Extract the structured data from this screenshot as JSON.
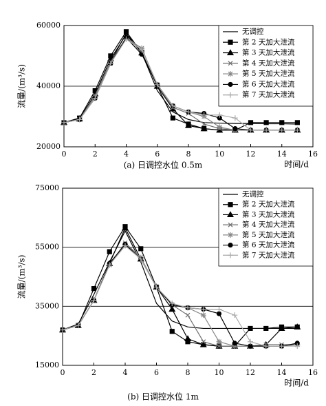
{
  "chart_data": [
    {
      "type": "line",
      "caption": "(a) 日调控水位 0.5m",
      "x_label": "时间/d",
      "y_label": "流量/(m³/s)",
      "x": [
        0,
        1,
        2,
        3,
        4,
        5,
        6,
        7,
        8,
        9,
        10,
        11,
        12,
        13,
        14,
        15
      ],
      "xlim": [
        0,
        16
      ],
      "xticks": [
        0,
        2,
        4,
        6,
        8,
        10,
        12,
        14,
        16
      ],
      "ylim": [
        20000,
        60000
      ],
      "yticks": [
        20000,
        40000,
        60000
      ],
      "grid": true,
      "legend": "upper right",
      "series": [
        {
          "name": "无调控",
          "color": "#000000",
          "marker": "none",
          "values": [
            28000,
            29500,
            37000,
            48000,
            57500,
            51000,
            38500,
            31500,
            29000,
            28000,
            27800,
            27700,
            27700,
            27600,
            27600,
            27500
          ]
        },
        {
          "name": "第 2 天加大泄流",
          "color": "#000000",
          "marker": "square",
          "values": [
            28000,
            29500,
            38500,
            50000,
            58000,
            51000,
            40000,
            29500,
            27500,
            26000,
            25500,
            25500,
            28000,
            28000,
            28000,
            28000
          ]
        },
        {
          "name": "第 3 天加大泄流",
          "color": "#000000",
          "marker": "triangle",
          "values": [
            28000,
            29200,
            37500,
            49000,
            57000,
            51000,
            40000,
            32500,
            27000,
            26000,
            25500,
            25500,
            25500,
            25500,
            25500,
            25500
          ]
        },
        {
          "name": "第 4 天加大泄流",
          "color": "#707070",
          "marker": "x",
          "values": [
            28000,
            29000,
            37000,
            48000,
            56000,
            52000,
            40500,
            33000,
            31000,
            27500,
            26000,
            25500,
            25500,
            25500,
            25500,
            25500
          ]
        },
        {
          "name": "第 5 天加大泄流",
          "color": "#888888",
          "marker": "star",
          "values": [
            28000,
            29000,
            36500,
            47500,
            56000,
            52500,
            40500,
            33500,
            31500,
            30000,
            26500,
            25500,
            25500,
            25500,
            25500,
            25500
          ]
        },
        {
          "name": "第 6 天加大泄流",
          "color": "#000000",
          "marker": "circle",
          "values": [
            28000,
            29000,
            36000,
            47500,
            56000,
            50500,
            40500,
            33500,
            31500,
            31000,
            29500,
            26000,
            25500,
            25500,
            25500,
            25500
          ]
        },
        {
          "name": "第 7 天加大泄流",
          "color": "#aaaaaa",
          "marker": "plus",
          "values": [
            28000,
            29000,
            36000,
            47500,
            55500,
            52000,
            40500,
            33500,
            31500,
            30500,
            30500,
            29500,
            25500,
            25500,
            25500,
            25500
          ]
        }
      ]
    },
    {
      "type": "line",
      "caption": "(b) 日调控水位 1m",
      "x_label": "时间/d",
      "y_label": "流量/(m³/s)",
      "x": [
        0,
        1,
        2,
        3,
        4,
        5,
        6,
        7,
        8,
        9,
        10,
        11,
        12,
        13,
        14,
        15
      ],
      "xlim": [
        0,
        16
      ],
      "xticks": [
        0,
        2,
        4,
        6,
        8,
        10,
        12,
        14,
        16
      ],
      "ylim": [
        15000,
        75000
      ],
      "yticks": [
        15000,
        35000,
        55000,
        75000
      ],
      "grid": true,
      "legend": "upper right",
      "series": [
        {
          "name": "无调控",
          "color": "#000000",
          "marker": "none",
          "values": [
            27000,
            29000,
            39000,
            50000,
            60500,
            50000,
            36000,
            30000,
            28000,
            27500,
            27500,
            27500,
            27500,
            27500,
            27500,
            27500
          ]
        },
        {
          "name": "第 2 天加大泄流",
          "color": "#000000",
          "marker": "square",
          "values": [
            27000,
            28500,
            41000,
            53500,
            62000,
            54500,
            41500,
            26500,
            23000,
            22000,
            21500,
            21500,
            27500,
            27500,
            28000,
            28000
          ]
        },
        {
          "name": "第 3 天加大泄流",
          "color": "#000000",
          "marker": "triangle",
          "values": [
            27000,
            28500,
            37000,
            49500,
            61500,
            51000,
            41500,
            34000,
            24000,
            22000,
            21500,
            21500,
            21500,
            22000,
            27500,
            28000
          ]
        },
        {
          "name": "第 4 天加大泄流",
          "color": "#707070",
          "marker": "x",
          "values": [
            27000,
            28500,
            37000,
            49000,
            56500,
            51500,
            41500,
            35500,
            32000,
            23000,
            21500,
            21500,
            21500,
            22000,
            22000,
            22000
          ]
        },
        {
          "name": "第 5 天加大泄流",
          "color": "#888888",
          "marker": "star",
          "values": [
            27000,
            28500,
            37000,
            49000,
            56000,
            51500,
            41500,
            35500,
            34500,
            32000,
            23000,
            21500,
            21500,
            21500,
            21500,
            22000
          ]
        },
        {
          "name": "第 6 天加大泄流",
          "color": "#000000",
          "marker": "circle",
          "values": [
            27000,
            28500,
            37000,
            49500,
            56000,
            51000,
            41500,
            35500,
            34500,
            34000,
            32500,
            22500,
            21500,
            21500,
            21500,
            22500
          ]
        },
        {
          "name": "第 7 天加大泄流",
          "color": "#aaaaaa",
          "marker": "plus",
          "values": [
            27000,
            28500,
            37000,
            49000,
            55500,
            51000,
            41500,
            36000,
            34500,
            34000,
            34000,
            32000,
            23000,
            21500,
            21500,
            21500
          ]
        }
      ]
    }
  ]
}
